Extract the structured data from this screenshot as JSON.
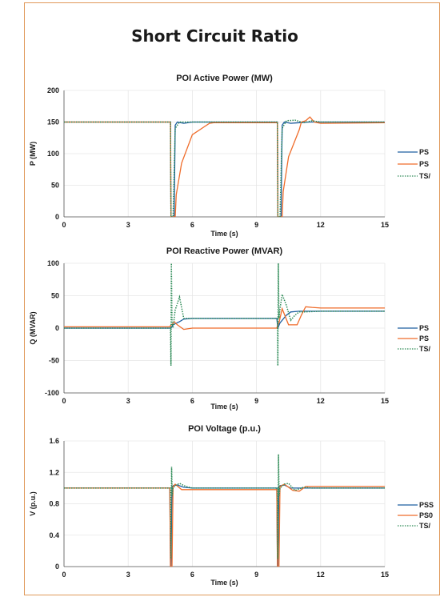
{
  "page": {
    "title": "Short Circuit Ratio"
  },
  "chart_data": [
    {
      "type": "line",
      "title": "POI Active Power (MW)",
      "xlabel": "Time (s)",
      "ylabel": "P (MW)",
      "xlim": [
        0,
        15
      ],
      "ylim": [
        0,
        200
      ],
      "xticks": [
        0,
        3,
        6,
        9,
        12,
        15
      ],
      "yticks": [
        0,
        50,
        100,
        150,
        200
      ],
      "legend": {
        "placement": "right",
        "labels": [
          "PS",
          "PS",
          "TS/"
        ]
      },
      "series": [
        {
          "color": "#1f5fa0",
          "dash": "solid",
          "x": [
            0,
            4.95,
            4.98,
            5.0,
            5.05,
            5.1,
            5.15,
            5.2,
            5.3,
            5.6,
            6.0,
            9.95,
            9.98,
            10.0,
            10.05,
            10.15,
            10.2,
            10.3,
            10.6,
            11.0,
            11.5,
            15
          ],
          "y": [
            150,
            150,
            150,
            0,
            0,
            0,
            0,
            145,
            150,
            148,
            150,
            150,
            150,
            0,
            0,
            0,
            145,
            150,
            148,
            149,
            150,
            150
          ]
        },
        {
          "color": "#ef6c2a",
          "dash": "solid",
          "x": [
            0,
            4.95,
            4.98,
            5.0,
            5.2,
            5.25,
            5.5,
            6.0,
            6.8,
            7.0,
            9.95,
            9.98,
            10.0,
            10.2,
            10.25,
            10.5,
            11.0,
            11.1,
            11.3,
            11.5,
            11.7,
            12.0,
            15
          ],
          "y": [
            150,
            150,
            150,
            0,
            0,
            35,
            85,
            130,
            148,
            149,
            149,
            149,
            0,
            0,
            40,
            95,
            138,
            150,
            152,
            158,
            150,
            148,
            149
          ]
        },
        {
          "color": "#2e8b57",
          "dash": "dotted",
          "x": [
            0,
            4.95,
            4.98,
            5.0,
            5.05,
            5.1,
            5.2,
            5.4,
            5.8,
            6.5,
            9.95,
            9.98,
            10.0,
            10.05,
            10.1,
            10.2,
            10.4,
            10.8,
            11.2,
            11.6,
            12.0,
            15
          ],
          "y": [
            150,
            150,
            150,
            0,
            0,
            0,
            140,
            150,
            150,
            150,
            150,
            150,
            0,
            0,
            0,
            140,
            152,
            153,
            149,
            152,
            150,
            150
          ]
        }
      ]
    },
    {
      "type": "line",
      "title": "POI Reactive Power (MVAR)",
      "xlabel": "Time (s)",
      "ylabel": "Q (MVAR)",
      "xlim": [
        0,
        15
      ],
      "ylim": [
        -100,
        100
      ],
      "xticks": [
        0,
        3,
        6,
        9,
        12,
        15
      ],
      "yticks": [
        -100,
        -50,
        0,
        50,
        100
      ],
      "legend": {
        "placement": "right",
        "labels": [
          "PS",
          "PS",
          "TS/"
        ]
      },
      "series": [
        {
          "color": "#1f5fa0",
          "dash": "solid",
          "x": [
            0,
            5.0,
            5.1,
            5.4,
            5.6,
            6.0,
            9.95,
            10.0,
            10.1,
            10.4,
            10.6,
            11.0,
            15
          ],
          "y": [
            0,
            0,
            5,
            10,
            14,
            15,
            15,
            0,
            8,
            20,
            25,
            26,
            26
          ]
        },
        {
          "color": "#ef6c2a",
          "dash": "solid",
          "x": [
            0,
            4.95,
            5.0,
            5.05,
            5.15,
            5.3,
            5.6,
            6.0,
            9.95,
            10.0,
            10.05,
            10.2,
            10.5,
            10.9,
            11.1,
            11.3,
            11.6,
            12.0,
            15
          ],
          "y": [
            2,
            2,
            5,
            5,
            10,
            5,
            -2,
            0,
            0,
            5,
            8,
            30,
            5,
            5,
            20,
            33,
            32,
            31,
            31
          ]
        },
        {
          "color": "#2e8b57",
          "dash": "dotted",
          "x": [
            0,
            4.98,
            5.0,
            5.02,
            5.05,
            5.1,
            5.2,
            5.4,
            5.6,
            6.0,
            9.98,
            10.0,
            10.02,
            10.05,
            10.1,
            10.2,
            10.4,
            10.6,
            10.8,
            11.0,
            11.2,
            12.0,
            15
          ],
          "y": [
            0,
            0,
            -58,
            100,
            10,
            0,
            28,
            48,
            15,
            15,
            15,
            -58,
            100,
            15,
            30,
            52,
            35,
            12,
            20,
            25,
            25,
            26,
            26
          ]
        }
      ]
    },
    {
      "type": "line",
      "title": "POI Voltage (p.u.)",
      "xlabel": "Time (s)",
      "ylabel": "V (p.u.)",
      "xlim": [
        0,
        15
      ],
      "ylim": [
        0,
        1.6
      ],
      "xticks": [
        0,
        3,
        6,
        9,
        12,
        15
      ],
      "yticks": [
        0,
        0.4,
        0.8,
        1.2,
        1.6
      ],
      "legend": {
        "placement": "right",
        "labels": [
          "PSS",
          "PS0",
          "TS/"
        ]
      },
      "series": [
        {
          "color": "#1f5fa0",
          "dash": "solid",
          "x": [
            0,
            4.95,
            4.98,
            5.0,
            5.05,
            5.1,
            5.3,
            5.6,
            6.0,
            9.95,
            9.98,
            10.0,
            10.05,
            10.1,
            10.3,
            10.6,
            11.0,
            15
          ],
          "y": [
            1.0,
            1.0,
            0.0,
            0.0,
            1.02,
            1.03,
            1.04,
            1.01,
            1.0,
            1.0,
            0.0,
            0.0,
            1.02,
            1.03,
            1.04,
            1.0,
            1.0,
            1.0
          ]
        },
        {
          "color": "#ef6c2a",
          "dash": "solid",
          "x": [
            0,
            4.95,
            4.98,
            5.05,
            5.1,
            5.2,
            5.5,
            6.0,
            9.95,
            9.98,
            10.05,
            10.1,
            10.3,
            10.7,
            11.0,
            11.3,
            11.6,
            15
          ],
          "y": [
            1.0,
            1.0,
            0.0,
            0.0,
            1.02,
            1.05,
            0.98,
            0.98,
            0.98,
            0.0,
            0.0,
            1.02,
            1.05,
            0.97,
            0.96,
            1.02,
            1.02,
            1.02
          ]
        },
        {
          "color": "#2e8b57",
          "dash": "dotted",
          "x": [
            0,
            4.98,
            5.0,
            5.03,
            5.06,
            5.1,
            5.2,
            5.4,
            5.7,
            6.0,
            9.98,
            10.0,
            10.03,
            10.06,
            10.1,
            10.3,
            10.5,
            10.8,
            11.2,
            11.6,
            15
          ],
          "y": [
            1.0,
            1.0,
            0.1,
            1.27,
            0.9,
            1.0,
            1.03,
            1.06,
            1.02,
            1.0,
            1.0,
            0.1,
            1.43,
            0.9,
            1.0,
            1.05,
            1.06,
            0.97,
            1.01,
            1.0,
            1.0
          ]
        }
      ]
    }
  ]
}
